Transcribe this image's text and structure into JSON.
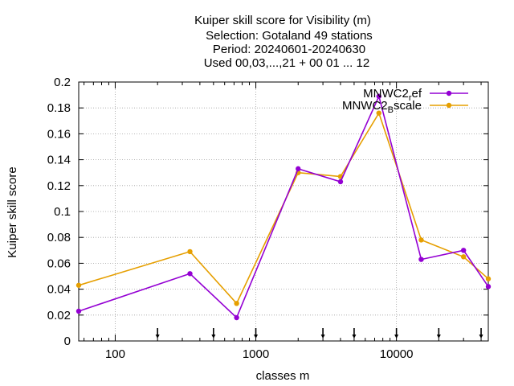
{
  "chart_data": {
    "type": "line",
    "title_lines": [
      "Kuiper skill score  for Visibility (m)",
      "Selection: Gotaland     49 stations",
      "Period: 20240601-20240630",
      "Used 00,03,...,21 + 00 01 ... 12"
    ],
    "xlabel": "classes m",
    "ylabel": "Kuiper skill score",
    "x_scale": "log",
    "xlim": [
      55,
      45000
    ],
    "ylim": [
      0,
      0.2
    ],
    "x_ticks": [
      100,
      1000,
      10000
    ],
    "x_tick_labels": [
      "100",
      "1000",
      "10000"
    ],
    "y_ticks": [
      0,
      0.02,
      0.04,
      0.06,
      0.08,
      0.1,
      0.12,
      0.14,
      0.16,
      0.18,
      0.2
    ],
    "y_tick_labels": [
      "0",
      "0.02",
      "0.04",
      "0.06",
      "0.08",
      "0.1",
      "0.12",
      "0.14",
      "0.16",
      "0.18",
      "0.2"
    ],
    "grid": true,
    "legend_position": "top-right",
    "arrow_markers_x": [
      200,
      500,
      1000,
      3000,
      5000,
      10000,
      20000,
      40000
    ],
    "series": [
      {
        "name": "MNWC2_ref",
        "legend_base": "MNWC2",
        "legend_sub": "r",
        "legend_tail": "ef",
        "color": "#9400d3",
        "x": [
          55,
          340,
          730,
          2000,
          4000,
          7500,
          15000,
          30000,
          45000
        ],
        "y": [
          0.023,
          0.052,
          0.018,
          0.133,
          0.123,
          0.189,
          0.063,
          0.07,
          0.042
        ]
      },
      {
        "name": "MNWC2_Bscale",
        "legend_base": "MNWC2",
        "legend_sub": "B",
        "legend_tail": "scale",
        "color": "#e69f00",
        "x": [
          55,
          340,
          730,
          2000,
          4000,
          7500,
          15000,
          30000,
          45000
        ],
        "y": [
          0.043,
          0.069,
          0.029,
          0.13,
          0.127,
          0.176,
          0.078,
          0.065,
          0.048
        ]
      }
    ]
  }
}
